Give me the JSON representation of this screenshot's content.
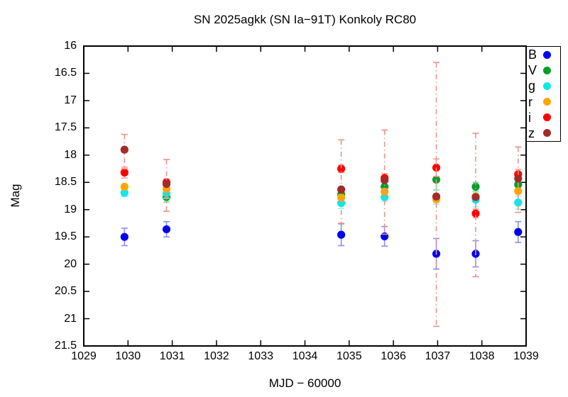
{
  "chart_data": {
    "type": "scatter",
    "title": "SN 2025agkk (SN Ia−91T) Konkoly RC80",
    "xlabel": "MJD − 60000",
    "ylabel": "Mag",
    "xlim": [
      1029,
      1039
    ],
    "ylim": [
      16,
      21.5
    ],
    "y_axis_inverted": true,
    "grid": false,
    "legend_position": "top-right-boxed",
    "xticks": [
      "1029",
      "1030",
      "1031",
      "1032",
      "1033",
      "1034",
      "1035",
      "1036",
      "1037",
      "1038",
      "1039"
    ],
    "yticks": [
      "16",
      "16.5",
      "17",
      "17.5",
      "18",
      "18.5",
      "19",
      "19.5",
      "20",
      "20.5",
      "21",
      "21.5"
    ],
    "series": [
      {
        "name": "B",
        "color": "#0000ee",
        "err_color": "#8c8cf2",
        "dash": false,
        "points": [
          {
            "x": 1029.92,
            "y": 19.5,
            "e": 0.16
          },
          {
            "x": 1030.87,
            "y": 19.36,
            "e": 0.14
          },
          {
            "x": 1034.82,
            "y": 19.46,
            "e": 0.2
          },
          {
            "x": 1035.8,
            "y": 19.49,
            "e": 0.18
          },
          {
            "x": 1036.97,
            "y": 19.81,
            "e": 0.28
          },
          {
            "x": 1037.86,
            "y": 19.81,
            "e": 0.24
          },
          {
            "x": 1038.82,
            "y": 19.41,
            "e": 0.19
          }
        ]
      },
      {
        "name": "V",
        "color": "#00a028",
        "err_color": "#86d49c",
        "dash": false,
        "points": [
          {
            "x": 1030.87,
            "y": 18.77,
            "e": 0.09
          },
          {
            "x": 1034.82,
            "y": 18.72,
            "e": 0.09
          },
          {
            "x": 1035.8,
            "y": 18.58,
            "e": 0.08
          },
          {
            "x": 1036.97,
            "y": 18.45,
            "e": 0.19
          },
          {
            "x": 1037.86,
            "y": 18.58,
            "e": 0.08
          },
          {
            "x": 1038.82,
            "y": 18.54,
            "e": 0.08
          }
        ]
      },
      {
        "name": "g",
        "color": "#0ce8e8",
        "err_color": "#9df2f2",
        "dash": false,
        "points": [
          {
            "x": 1029.92,
            "y": 18.69,
            "e": 0.07
          },
          {
            "x": 1030.87,
            "y": 18.7,
            "e": 0.09
          },
          {
            "x": 1034.82,
            "y": 18.88,
            "e": 0.1
          },
          {
            "x": 1035.8,
            "y": 18.77,
            "e": 0.08
          },
          {
            "x": 1036.97,
            "y": 18.8,
            "e": 0.1
          },
          {
            "x": 1037.86,
            "y": 18.82,
            "e": 0.13
          },
          {
            "x": 1038.82,
            "y": 18.87,
            "e": 0.12
          }
        ]
      },
      {
        "name": "r",
        "color": "#ffa500",
        "err_color": "#ffd48c",
        "dash": false,
        "points": [
          {
            "x": 1029.92,
            "y": 18.58,
            "e": 0.05
          },
          {
            "x": 1030.87,
            "y": 18.62,
            "e": 0.05
          },
          {
            "x": 1034.82,
            "y": 18.78,
            "e": 0.05
          },
          {
            "x": 1035.8,
            "y": 18.67,
            "e": 0.05
          },
          {
            "x": 1036.97,
            "y": 18.81,
            "e": 0.06
          },
          {
            "x": 1037.86,
            "y": 18.76,
            "e": 0.05
          },
          {
            "x": 1038.82,
            "y": 18.66,
            "e": 0.05
          }
        ]
      },
      {
        "name": "i",
        "color": "#ff0000",
        "err_color": "#ff9c9c",
        "dash": false,
        "points": [
          {
            "x": 1029.92,
            "y": 18.32,
            "e": 0.1
          },
          {
            "x": 1030.87,
            "y": 18.5,
            "e": 0.06
          },
          {
            "x": 1034.82,
            "y": 18.25,
            "e": 0.07
          },
          {
            "x": 1035.8,
            "y": 18.42,
            "e": 0.08
          },
          {
            "x": 1036.97,
            "y": 18.23,
            "e": 0.16
          },
          {
            "x": 1037.86,
            "y": 19.07,
            "e": 0.08
          },
          {
            "x": 1038.82,
            "y": 18.35,
            "e": 0.09
          }
        ]
      },
      {
        "name": "z",
        "color": "#a52a2a",
        "err_color": "#e8948c",
        "dash": true,
        "points": [
          {
            "x": 1029.92,
            "y": 17.9,
            "lo": 17.62,
            "hi": 18.25
          },
          {
            "x": 1030.87,
            "y": 18.53,
            "lo": 18.08,
            "hi": 19.03
          },
          {
            "x": 1034.82,
            "y": 18.63,
            "lo": 17.72,
            "hi": 19.25
          },
          {
            "x": 1035.8,
            "y": 18.46,
            "lo": 17.54,
            "hi": 19.45
          },
          {
            "x": 1036.97,
            "y": 18.76,
            "lo": 16.3,
            "hi": 21.14
          },
          {
            "x": 1037.86,
            "y": 18.77,
            "lo": 17.6,
            "hi": 20.23
          },
          {
            "x": 1038.82,
            "y": 18.43,
            "lo": 17.85,
            "hi": 19.05
          }
        ]
      }
    ]
  }
}
